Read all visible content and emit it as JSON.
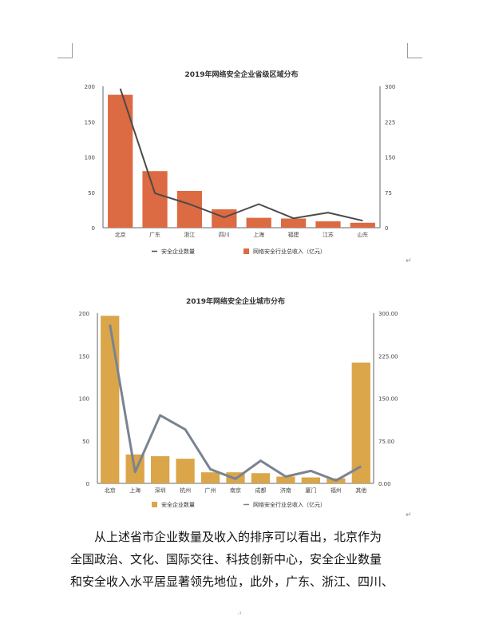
{
  "chart_data": [
    {
      "type": "bar",
      "title": "2019年网络安全企业省级区域分布",
      "categories": [
        "北京",
        "广东",
        "浙江",
        "四川",
        "上海",
        "福建",
        "江苏",
        "山东"
      ],
      "series": [
        {
          "name": "安全企业数量",
          "kind": "line",
          "axis": "right",
          "color": "#4a4a4a",
          "values": [
            295,
            73,
            50,
            22,
            50,
            20,
            32,
            15
          ]
        },
        {
          "name": "网络安全行业总收入（亿元）",
          "kind": "bar",
          "axis": "left",
          "color": "#dc6a42",
          "values": [
            188,
            80,
            52,
            26,
            14,
            13,
            9,
            7
          ]
        }
      ],
      "y_left": {
        "ticks": [
          "0",
          "50",
          "100",
          "150",
          "200"
        ],
        "ylim": [
          0,
          200
        ]
      },
      "y_right": {
        "ticks": [
          "0",
          "75",
          "150",
          "225",
          "300"
        ],
        "ylim": [
          0,
          300
        ]
      },
      "legend_placement": "bottom",
      "grid": false
    },
    {
      "type": "bar",
      "title": "2019年网络安全企业城市分布",
      "categories": [
        "北京",
        "上海",
        "深圳",
        "杭州",
        "广州",
        "南京",
        "成都",
        "济南",
        "厦门",
        "福州",
        "其他"
      ],
      "series": [
        {
          "name": "安全企业数量",
          "kind": "bar",
          "axis": "left",
          "color": "#dba54a",
          "values": [
            197,
            34,
            32,
            29,
            13,
            13,
            12,
            8,
            7,
            6,
            142
          ]
        },
        {
          "name": "网络安全行业总收入（亿元）",
          "kind": "line",
          "axis": "right",
          "color": "#7a8390",
          "values": [
            280,
            20,
            120,
            95,
            25,
            8,
            40,
            12,
            22,
            5,
            30
          ]
        }
      ],
      "y_left": {
        "ticks": [
          "0",
          "50",
          "100",
          "150",
          "200"
        ],
        "ylim": [
          0,
          200
        ]
      },
      "y_right": {
        "ticks": [
          "0.00",
          "75.00",
          "150.00",
          "225.00",
          "300.00"
        ],
        "ylim": [
          0,
          300
        ]
      },
      "legend_placement": "bottom",
      "grid": false
    }
  ],
  "body_text": {
    "lines": [
      "从上述省市企业数量及收入的排序可以看出，北京作为",
      "全国政治、文化、国际交往、科技创新中心，安全企业数量",
      "和安全收入水平居显著领先地位，此外，广东、浙江、四川、"
    ]
  },
  "paragraph_mark": "↵",
  "page_mark": "·¹"
}
